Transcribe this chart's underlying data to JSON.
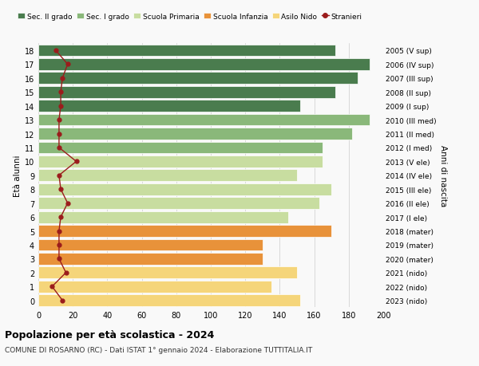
{
  "ages": [
    0,
    1,
    2,
    3,
    4,
    5,
    6,
    7,
    8,
    9,
    10,
    11,
    12,
    13,
    14,
    15,
    16,
    17,
    18
  ],
  "bar_values": [
    152,
    135,
    150,
    130,
    130,
    170,
    145,
    163,
    170,
    150,
    165,
    165,
    182,
    192,
    152,
    172,
    185,
    192,
    172
  ],
  "bar_colors": [
    "#f5d57a",
    "#f5d57a",
    "#f5d57a",
    "#e8923a",
    "#e8923a",
    "#e8923a",
    "#c8dda0",
    "#c8dda0",
    "#c8dda0",
    "#c8dda0",
    "#c8dda0",
    "#8ab87a",
    "#8ab87a",
    "#8ab87a",
    "#4a7c4e",
    "#4a7c4e",
    "#4a7c4e",
    "#4a7c4e",
    "#4a7c4e"
  ],
  "stranieri_values": [
    14,
    8,
    16,
    12,
    12,
    12,
    13,
    17,
    13,
    12,
    22,
    12,
    12,
    12,
    13,
    13,
    14,
    17,
    10
  ],
  "right_labels": [
    "2023 (nido)",
    "2022 (nido)",
    "2021 (nido)",
    "2020 (mater)",
    "2019 (mater)",
    "2018 (mater)",
    "2017 (I ele)",
    "2016 (II ele)",
    "2015 (III ele)",
    "2014 (IV ele)",
    "2013 (V ele)",
    "2012 (I med)",
    "2011 (II med)",
    "2010 (III med)",
    "2009 (I sup)",
    "2008 (II sup)",
    "2007 (III sup)",
    "2006 (IV sup)",
    "2005 (V sup)"
  ],
  "legend_labels": [
    "Sec. II grado",
    "Sec. I grado",
    "Scuola Primaria",
    "Scuola Infanzia",
    "Asilo Nido",
    "Stranieri"
  ],
  "legend_colors": [
    "#4a7c4e",
    "#8ab87a",
    "#c8dda0",
    "#e8923a",
    "#f5d57a",
    "#9b1c1c"
  ],
  "title": "Popolazione per età scolastica - 2024",
  "subtitle": "COMUNE DI ROSARNO (RC) - Dati ISTAT 1° gennaio 2024 - Elaborazione TUTTITALIA.IT",
  "ylabel_left": "Età alunni",
  "ylabel_right": "Anni di nascita",
  "xlim": [
    0,
    200
  ],
  "xticks": [
    0,
    20,
    40,
    60,
    80,
    100,
    120,
    140,
    160,
    180,
    200
  ],
  "bg_color": "#f9f9f9",
  "bar_edgecolor": "white",
  "grid_color": "#cccccc"
}
